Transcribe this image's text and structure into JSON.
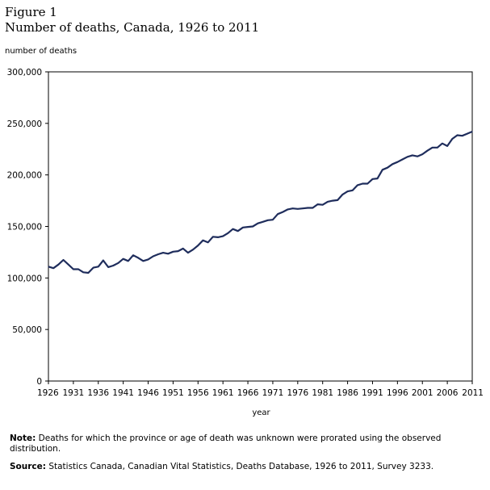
{
  "figure_label": "Figure 1",
  "chart_data": {
    "type": "line",
    "title": "Number of deaths, Canada, 1926 to 2011",
    "ylabel": "number of deaths",
    "xlabel": "year",
    "ylim": [
      0,
      300000
    ],
    "xlim": [
      1926,
      2011
    ],
    "y_ticks": [
      0,
      50000,
      100000,
      150000,
      200000,
      250000,
      300000
    ],
    "y_tick_labels": [
      "0",
      "50,000",
      "100,000",
      "150,000",
      "200,000",
      "250,000",
      "300,000"
    ],
    "x_ticks": [
      1926,
      1931,
      1936,
      1941,
      1946,
      1951,
      1956,
      1961,
      1966,
      1971,
      1976,
      1981,
      1986,
      1991,
      1996,
      2001,
      2006,
      2011
    ],
    "x_tick_labels": [
      "1926",
      "1931",
      "1936",
      "1941",
      "1946",
      "1951",
      "1956",
      "1961",
      "1966",
      "1971",
      "1976",
      "1981",
      "1986",
      "1991",
      "1996",
      "2001",
      "2006",
      "2011"
    ],
    "grid": false,
    "line_color": "#1f2d5c",
    "series": [
      {
        "x": [
          1926,
          1927,
          1928,
          1929,
          1930,
          1931,
          1932,
          1933,
          1934,
          1935,
          1936,
          1937,
          1938,
          1939,
          1940,
          1941,
          1942,
          1943,
          1944,
          1945,
          1946,
          1947,
          1948,
          1949,
          1950,
          1951,
          1952,
          1953,
          1954,
          1955,
          1956,
          1957,
          1958,
          1959,
          1960,
          1961,
          1962,
          1963,
          1964,
          1965,
          1966,
          1967,
          1968,
          1969,
          1970,
          1971,
          1972,
          1973,
          1974,
          1975,
          1976,
          1977,
          1978,
          1979,
          1980,
          1981,
          1982,
          1983,
          1984,
          1985,
          1986,
          1987,
          1988,
          1989,
          1990,
          1991,
          1992,
          1993,
          1994,
          1995,
          1996,
          1997,
          1998,
          1999,
          2000,
          2001,
          2002,
          2003,
          2004,
          2005,
          2006,
          2007,
          2008,
          2009,
          2010,
          2011
        ],
        "values": [
          111000,
          109500,
          113000,
          117500,
          113000,
          108500,
          108500,
          105500,
          105000,
          110000,
          111000,
          117000,
          110500,
          112000,
          114500,
          118500,
          116500,
          122000,
          119500,
          116500,
          118000,
          121000,
          123000,
          124500,
          123500,
          125500,
          126000,
          128500,
          124500,
          127500,
          131500,
          136500,
          134500,
          140000,
          139500,
          140500,
          143500,
          147500,
          145500,
          149000,
          149500,
          150000,
          153000,
          154500,
          156000,
          156500,
          162000,
          164000,
          166500,
          167500,
          167000,
          167500,
          168000,
          168000,
          171500,
          171000,
          174000,
          175000,
          175500,
          181000,
          184000,
          185000,
          190000,
          191500,
          191500,
          196000,
          196500,
          205000,
          207000,
          210500,
          212500,
          215000,
          217500,
          219000,
          218000,
          220000,
          223500,
          226500,
          226500,
          230500,
          228000,
          235000,
          238500,
          238000,
          240000,
          242000
        ]
      }
    ]
  },
  "note": {
    "label": "Note:",
    "text": " Deaths for which the province or age of death was unknown were prorated using the observed distribution."
  },
  "source": {
    "label": "Source:",
    "text": " Statistics Canada, Canadian Vital Statistics, Deaths Database, 1926 to 2011, Survey 3233."
  }
}
